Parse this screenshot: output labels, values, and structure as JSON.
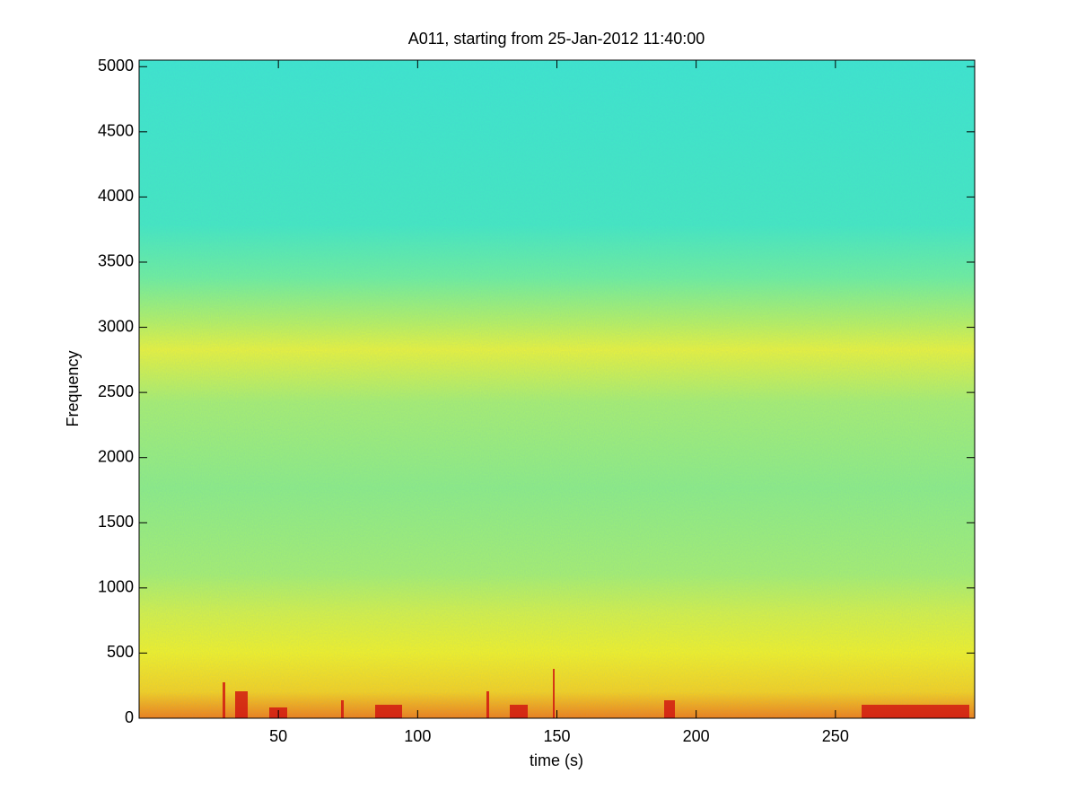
{
  "chart_data": {
    "type": "spectrogram",
    "title": "A011, starting from 25-Jan-2012 11:40:00",
    "x_label": "time (s)",
    "y_label": "Frequency",
    "xlim": [
      0,
      300
    ],
    "xticks": [
      50,
      100,
      150,
      200,
      250
    ],
    "ylim": [
      0,
      5050
    ],
    "yticks": [
      0,
      500,
      1000,
      1500,
      2000,
      2500,
      3000,
      3500,
      4000,
      4500,
      5000
    ]
  }
}
